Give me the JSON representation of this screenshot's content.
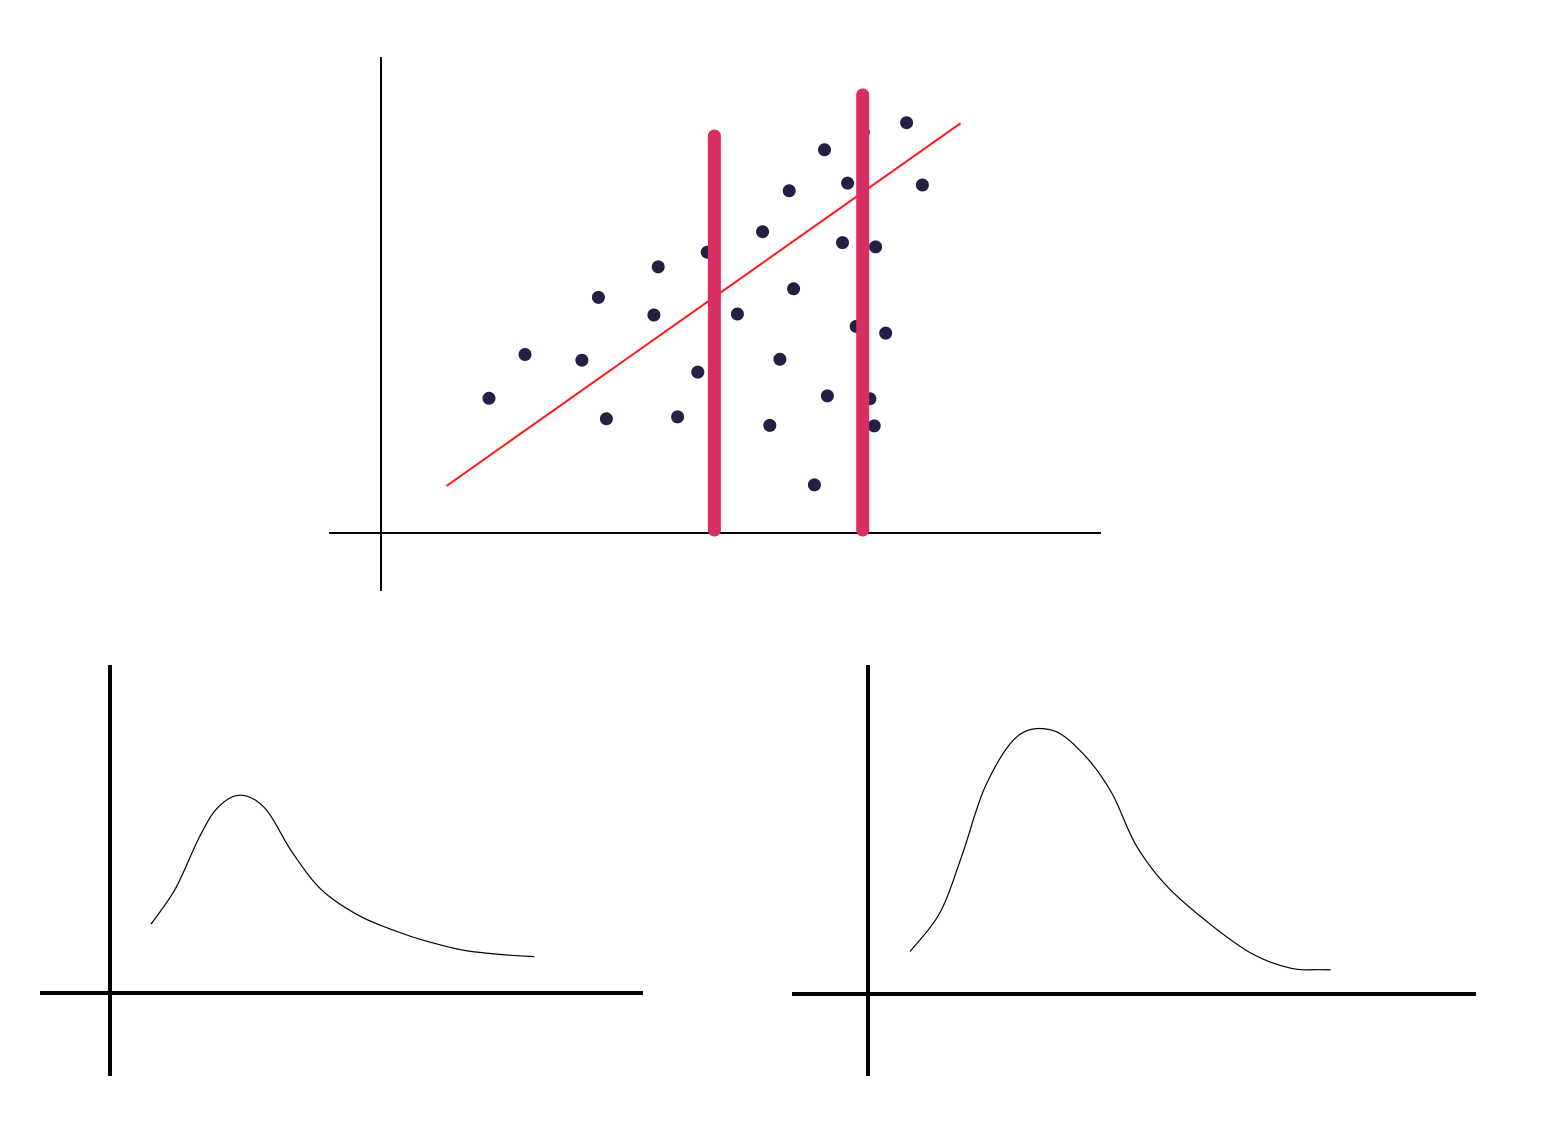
{
  "colors": {
    "background": "#ffffff",
    "axis": "#000000",
    "point": "#241f45",
    "trend_line": "#ff1a1a",
    "vertical_marker": "#d92e62",
    "curve": "#000000"
  },
  "chart_data": [
    {
      "type": "scatter",
      "title": "",
      "xlabel": "",
      "ylabel": "",
      "xlim": [
        0,
        100
      ],
      "ylim": [
        0,
        100
      ],
      "grid": false,
      "points": [
        {
          "x": 15.0,
          "y": 28.3
        },
        {
          "x": 20.0,
          "y": 37.5
        },
        {
          "x": 30.2,
          "y": 49.5
        },
        {
          "x": 27.9,
          "y": 36.3
        },
        {
          "x": 31.3,
          "y": 24.0
        },
        {
          "x": 38.5,
          "y": 55.9
        },
        {
          "x": 37.9,
          "y": 45.8
        },
        {
          "x": 41.2,
          "y": 24.4
        },
        {
          "x": 44.0,
          "y": 33.8
        },
        {
          "x": 45.3,
          "y": 59.0
        },
        {
          "x": 49.5,
          "y": 46.0
        },
        {
          "x": 53.0,
          "y": 63.3
        },
        {
          "x": 54.0,
          "y": 22.6
        },
        {
          "x": 55.4,
          "y": 36.5
        },
        {
          "x": 56.7,
          "y": 71.9
        },
        {
          "x": 57.3,
          "y": 51.3
        },
        {
          "x": 60.2,
          "y": 10.1
        },
        {
          "x": 61.6,
          "y": 80.5
        },
        {
          "x": 62.0,
          "y": 28.8
        },
        {
          "x": 64.1,
          "y": 61.0
        },
        {
          "x": 64.8,
          "y": 73.5
        },
        {
          "x": 66.0,
          "y": 43.4
        },
        {
          "x": 67.0,
          "y": 84.2
        },
        {
          "x": 67.9,
          "y": 28.2
        },
        {
          "x": 68.5,
          "y": 22.5
        },
        {
          "x": 68.7,
          "y": 60.1
        },
        {
          "x": 70.1,
          "y": 42.0
        },
        {
          "x": 73.0,
          "y": 86.2
        },
        {
          "x": 75.2,
          "y": 73.1
        }
      ],
      "trend_line": {
        "x": [
          9.1,
          80.5
        ],
        "y": [
          9.9,
          86.1
        ]
      },
      "vertical_markers": [
        {
          "x": 46.3
        },
        {
          "x": 66.9
        }
      ]
    },
    {
      "type": "line",
      "title": "",
      "xlabel": "",
      "ylabel": "",
      "xlim": [
        0,
        100
      ],
      "ylim": [
        0,
        100
      ],
      "grid": false,
      "x": [
        7.7,
        12.3,
        16.8,
        20.2,
        24.5,
        29.2,
        34.1,
        39.6,
        46.6,
        53.6,
        59.4,
        66.5,
        73.6,
        79.6
      ],
      "y": [
        21.0,
        31.9,
        47.6,
        56.5,
        60.3,
        56.1,
        43.1,
        31.6,
        23.7,
        18.9,
        15.8,
        13.0,
        11.7,
        11.1
      ]
    },
    {
      "type": "line",
      "title": "",
      "xlabel": "",
      "ylabel": "",
      "xlim": [
        0,
        100
      ],
      "ylim": [
        0,
        100
      ],
      "grid": false,
      "x": [
        6.9,
        11.8,
        15.5,
        19.3,
        24.5,
        30.2,
        35.3,
        40.0,
        44.1,
        49.2,
        56.3,
        63.2,
        69.6,
        74.3,
        76.1
      ],
      "y": [
        12.9,
        24.6,
        42.3,
        63.1,
        78.2,
        80.2,
        73.2,
        61.4,
        45.2,
        32.7,
        21.2,
        12.2,
        7.8,
        7.4,
        7.4
      ]
    }
  ]
}
